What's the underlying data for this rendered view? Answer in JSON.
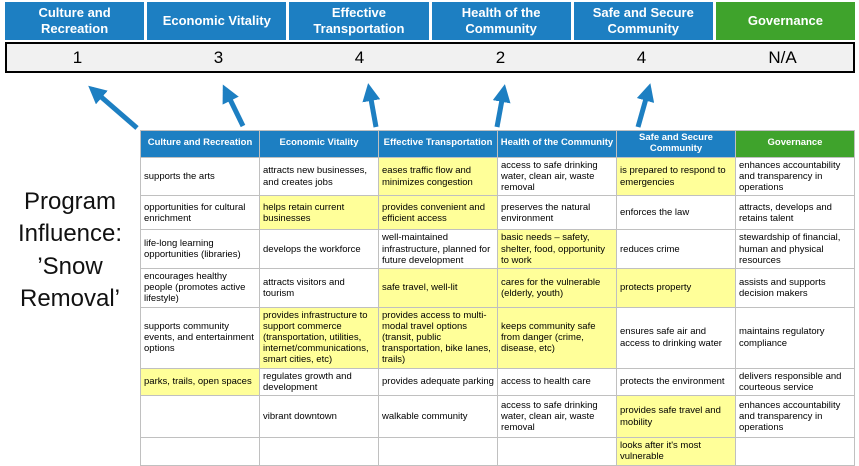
{
  "title": {
    "lines": [
      "Program",
      "Influence:",
      "’Snow",
      "Removal’"
    ]
  },
  "colors": {
    "pillar_blue": "#1d7fc2",
    "governance_green": "#3fa32c",
    "highlight_yellow": "#ffff99",
    "arrow_blue": "#1d7fc2"
  },
  "scoreboard": {
    "columns": [
      {
        "label": "Culture and Recreation",
        "score": "1",
        "color": "blue"
      },
      {
        "label": "Economic Vitality",
        "score": "3",
        "color": "blue"
      },
      {
        "label": "Effective Transportation",
        "score": "4",
        "color": "blue"
      },
      {
        "label": "Health of the Community",
        "score": "2",
        "color": "blue"
      },
      {
        "label": "Safe and Secure Community",
        "score": "4",
        "color": "blue"
      },
      {
        "label": "Governance",
        "score": "N/A",
        "color": "green"
      }
    ]
  },
  "matrix": {
    "headers": [
      {
        "label": "Culture and Recreation",
        "color": "blue"
      },
      {
        "label": "Economic Vitality",
        "color": "blue"
      },
      {
        "label": "Effective Transportation",
        "color": "blue"
      },
      {
        "label": "Health of the Community",
        "color": "blue"
      },
      {
        "label": "Safe and Secure Community",
        "color": "blue"
      },
      {
        "label": "Governance",
        "color": "green"
      }
    ],
    "rows": [
      [
        {
          "text": "supports the arts",
          "highlight": false
        },
        {
          "text": "attracts new businesses, and creates jobs",
          "highlight": false
        },
        {
          "text": "eases traffic flow and minimizes congestion",
          "highlight": true
        },
        {
          "text": "access to safe drinking water, clean air, waste removal",
          "highlight": false
        },
        {
          "text": "is prepared to respond to emergencies",
          "highlight": true
        },
        {
          "text": "enhances accountability and transparency in operations",
          "highlight": false
        }
      ],
      [
        {
          "text": "opportunities for cultural enrichment",
          "highlight": false
        },
        {
          "text": "helps retain current businesses",
          "highlight": true
        },
        {
          "text": "provides convenient and efficient access",
          "highlight": true
        },
        {
          "text": "preserves the natural environment",
          "highlight": false
        },
        {
          "text": "enforces the law",
          "highlight": false
        },
        {
          "text": "attracts, develops and retains talent",
          "highlight": false
        }
      ],
      [
        {
          "text": "life-long learning opportunities (libraries)",
          "highlight": false
        },
        {
          "text": "develops the workforce",
          "highlight": false
        },
        {
          "text": "well-maintained infrastructure, planned for future development",
          "highlight": false
        },
        {
          "text": "basic needs – safety, shelter, food, opportunity to work",
          "highlight": true
        },
        {
          "text": "reduces crime",
          "highlight": false
        },
        {
          "text": "stewardship of financial, human and physical resources",
          "highlight": false
        }
      ],
      [
        {
          "text": "encourages healthy people (promotes active lifestyle)",
          "highlight": false
        },
        {
          "text": "attracts visitors and tourism",
          "highlight": false
        },
        {
          "text": "safe travel, well-lit",
          "highlight": true
        },
        {
          "text": "cares for the vulnerable (elderly, youth)",
          "highlight": true
        },
        {
          "text": "protects property",
          "highlight": true
        },
        {
          "text": "assists and supports decision makers",
          "highlight": false
        }
      ],
      [
        {
          "text": "supports community events, and entertainment options",
          "highlight": false
        },
        {
          "text": "provides infrastructure to support commerce (transportation, utilities, internet/communications, smart cities, etc)",
          "highlight": true
        },
        {
          "text": "provides access to multi-modal travel options (transit, public transportation, bike lanes, trails)",
          "highlight": true
        },
        {
          "text": "keeps community safe from danger (crime, disease, etc)",
          "highlight": true
        },
        {
          "text": "ensures safe air and access to drinking water",
          "highlight": false
        },
        {
          "text": "maintains regulatory compliance",
          "highlight": false
        }
      ],
      [
        {
          "text": "parks, trails, open spaces",
          "highlight": true
        },
        {
          "text": "regulates growth and development",
          "highlight": false
        },
        {
          "text": "provides adequate parking",
          "highlight": false
        },
        {
          "text": "access to health care",
          "highlight": false
        },
        {
          "text": "protects the environment",
          "highlight": false
        },
        {
          "text": "delivers responsible and courteous service",
          "highlight": false
        }
      ],
      [
        {
          "text": "",
          "highlight": false
        },
        {
          "text": "vibrant downtown",
          "highlight": false
        },
        {
          "text": "walkable community",
          "highlight": false
        },
        {
          "text": "access to safe drinking water, clean air, waste removal",
          "highlight": false
        },
        {
          "text": "provides safe travel and mobility",
          "highlight": true
        },
        {
          "text": "enhances accountability and transparency in operations",
          "highlight": false
        }
      ],
      [
        {
          "text": "",
          "highlight": false
        },
        {
          "text": "",
          "highlight": false
        },
        {
          "text": "",
          "highlight": false
        },
        {
          "text": "",
          "highlight": false
        },
        {
          "text": "looks after it's most vulnerable",
          "highlight": true
        },
        {
          "text": "",
          "highlight": false
        }
      ]
    ]
  }
}
